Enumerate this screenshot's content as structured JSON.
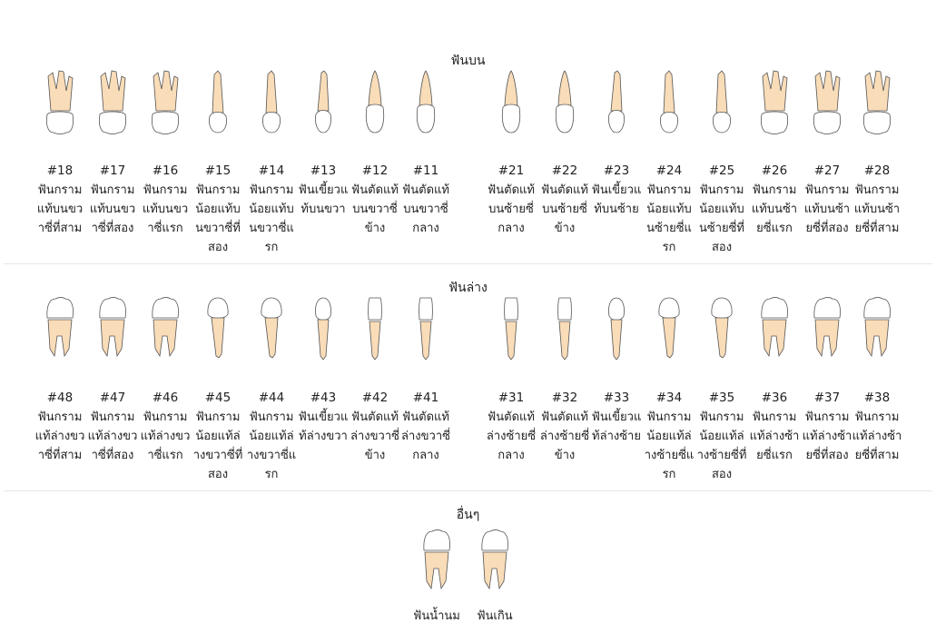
{
  "sections": {
    "upper": "ฟันบน",
    "lower": "ฟันล่าง",
    "other": "อื่นๆ"
  },
  "upper": [
    {
      "num": "#18",
      "label": "ฟันกรามแท้บนขวาซี่ที่สาม",
      "kind": "molar"
    },
    {
      "num": "#17",
      "label": "ฟันกรามแท้บนขวาซี่ที่สอง",
      "kind": "molar"
    },
    {
      "num": "#16",
      "label": "ฟันกรามแท้บนขวาซี่แรก",
      "kind": "molar"
    },
    {
      "num": "#15",
      "label": "ฟันกรามน้อยแท้บนขวาซี่ที่สอง",
      "kind": "premolar"
    },
    {
      "num": "#14",
      "label": "ฟันกรามน้อยแท้บนขวาซี่แรก",
      "kind": "premolar"
    },
    {
      "num": "#13",
      "label": "ฟันเขี้ยวแท้บนขวา",
      "kind": "canine"
    },
    {
      "num": "#12",
      "label": "ฟันตัดแท้บนขวาซี่ข้าง",
      "kind": "incisor"
    },
    {
      "num": "#11",
      "label": "ฟันตัดแท้บนขวาซี่กลาง",
      "kind": "incisor"
    },
    {
      "num": "#21",
      "label": "ฟันตัดแท้บนซ้ายซี่กลาง",
      "kind": "incisor"
    },
    {
      "num": "#22",
      "label": "ฟันตัดแท้บนซ้ายซี่ข้าง",
      "kind": "incisor"
    },
    {
      "num": "#23",
      "label": "ฟันเขี้ยวแท้บนซ้าย",
      "kind": "canine"
    },
    {
      "num": "#24",
      "label": "ฟันกรามน้อยแท้บนซ้ายซี่แรก",
      "kind": "premolar"
    },
    {
      "num": "#25",
      "label": "ฟันกรามน้อยแท้บนซ้ายซี่ที่สอง",
      "kind": "premolar"
    },
    {
      "num": "#26",
      "label": "ฟันกรามแท้บนซ้ายซี่แรก",
      "kind": "molar"
    },
    {
      "num": "#27",
      "label": "ฟันกรามแท้บนซ้ายซี่ที่สอง",
      "kind": "molar"
    },
    {
      "num": "#28",
      "label": "ฟันกรามแท้บนซ้ายซี่ที่สาม",
      "kind": "molar"
    }
  ],
  "lower": [
    {
      "num": "#48",
      "label": "ฟันกรามแท้ล่างขวาซี่ที่สาม",
      "kind": "molar"
    },
    {
      "num": "#47",
      "label": "ฟันกรามแท้ล่างขวาซี่ที่สอง",
      "kind": "molar"
    },
    {
      "num": "#46",
      "label": "ฟันกรามแท้ล่างขวาซี่แรก",
      "kind": "molar"
    },
    {
      "num": "#45",
      "label": "ฟันกรามน้อยแท้ล่างขวาซี่ที่สอง",
      "kind": "premolar"
    },
    {
      "num": "#44",
      "label": "ฟันกรามน้อยแท้ล่างขวาซี่แรก",
      "kind": "premolar"
    },
    {
      "num": "#43",
      "label": "ฟันเขี้ยวแท้ล่างขวา",
      "kind": "canine"
    },
    {
      "num": "#42",
      "label": "ฟันตัดแท้ล่างขวาซี่ข้าง",
      "kind": "incisor"
    },
    {
      "num": "#41",
      "label": "ฟันตัดแท้ล่างขวาซี่กลาง",
      "kind": "incisor"
    },
    {
      "num": "#31",
      "label": "ฟันตัดแท้ล่างซ้ายซี่กลาง",
      "kind": "incisor"
    },
    {
      "num": "#32",
      "label": "ฟันตัดแท้ล่างซ้ายซี่ข้าง",
      "kind": "incisor"
    },
    {
      "num": "#33",
      "label": "ฟันเขี้ยวแท้ล่างซ้าย",
      "kind": "canine"
    },
    {
      "num": "#34",
      "label": "ฟันกรามน้อยแท้ล่างซ้ายซี่แรก",
      "kind": "premolar"
    },
    {
      "num": "#35",
      "label": "ฟันกรามน้อยแท้ล่างซ้ายซี่ที่สอง",
      "kind": "premolar"
    },
    {
      "num": "#36",
      "label": "ฟันกรามแท้ล่างซ้ายซี่แรก",
      "kind": "molar"
    },
    {
      "num": "#37",
      "label": "ฟันกรามแท้ล่างซ้ายซี่ที่สอง",
      "kind": "molar"
    },
    {
      "num": "#38",
      "label": "ฟันกรามแท้ล่างซ้ายซี่ที่สาม",
      "kind": "molar"
    }
  ],
  "other": [
    {
      "label": "ฟันน้ำนม",
      "kind": "molar"
    },
    {
      "label": "ฟันเกิน",
      "kind": "molar"
    }
  ],
  "colors": {
    "root": "#f9dcb8",
    "root_stroke": "#555555",
    "crown": "#ffffff",
    "divider": "#e6e6e6"
  }
}
